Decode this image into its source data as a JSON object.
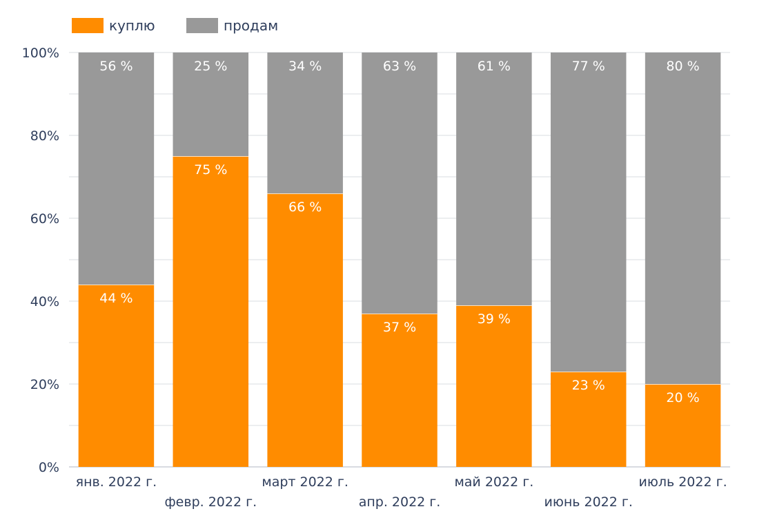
{
  "chart_data": {
    "type": "bar",
    "stacked": true,
    "percent": true,
    "categories": [
      "янв. 2022 г.",
      "февр. 2022 г.",
      "март 2022 г.",
      "апр. 2022 г.",
      "май 2022 г.",
      "июнь 2022 г.",
      "июль 2022 г."
    ],
    "series": [
      {
        "name": "куплю",
        "color": "#ff8c00",
        "values": [
          44,
          75,
          66,
          37,
          39,
          23,
          20
        ],
        "labels": [
          "44 %",
          "75 %",
          "66 %",
          "37 %",
          "39 %",
          "23 %",
          "20 %"
        ]
      },
      {
        "name": "продам",
        "color": "#999999",
        "values": [
          56,
          25,
          34,
          63,
          61,
          77,
          80
        ],
        "labels": [
          "56 %",
          "25 %",
          "34 %",
          "63 %",
          "61 %",
          "77 %",
          "80 %"
        ]
      }
    ],
    "ylim": [
      0,
      100
    ],
    "yticks": [
      "0%",
      "20%",
      "40%",
      "60%",
      "80%",
      "100%"
    ],
    "ytick_values": [
      0,
      20,
      40,
      60,
      80,
      100
    ],
    "grid": true,
    "legend": "top-left"
  }
}
